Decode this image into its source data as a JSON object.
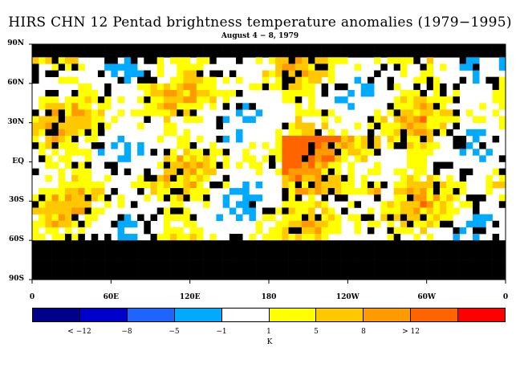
{
  "title": "HIRS CHN 12 Pentad brightness temperature anomalies (1979−1995)",
  "subtitle": "August 4 − 8, 1979",
  "y_axis": {
    "ticks": [
      "90N",
      "60N",
      "30N",
      "EQ",
      "30S",
      "60S",
      "90S"
    ]
  },
  "x_axis": {
    "ticks": [
      "0",
      "60E",
      "120E",
      "180",
      "120W",
      "60W",
      "0"
    ]
  },
  "colorbar": {
    "colors": [
      "#00008b",
      "#0000cd",
      "#1e64ff",
      "#00aaff",
      "#ffffff",
      "#ffff00",
      "#ffc800",
      "#ff9b00",
      "#ff6400",
      "#ff0000"
    ],
    "labels": [
      "< −12",
      "−8",
      "−5",
      "−1",
      "1",
      "5",
      "8",
      "> 12"
    ],
    "unit": "K"
  },
  "land_color": "#000000",
  "missing_color": "#000000"
}
